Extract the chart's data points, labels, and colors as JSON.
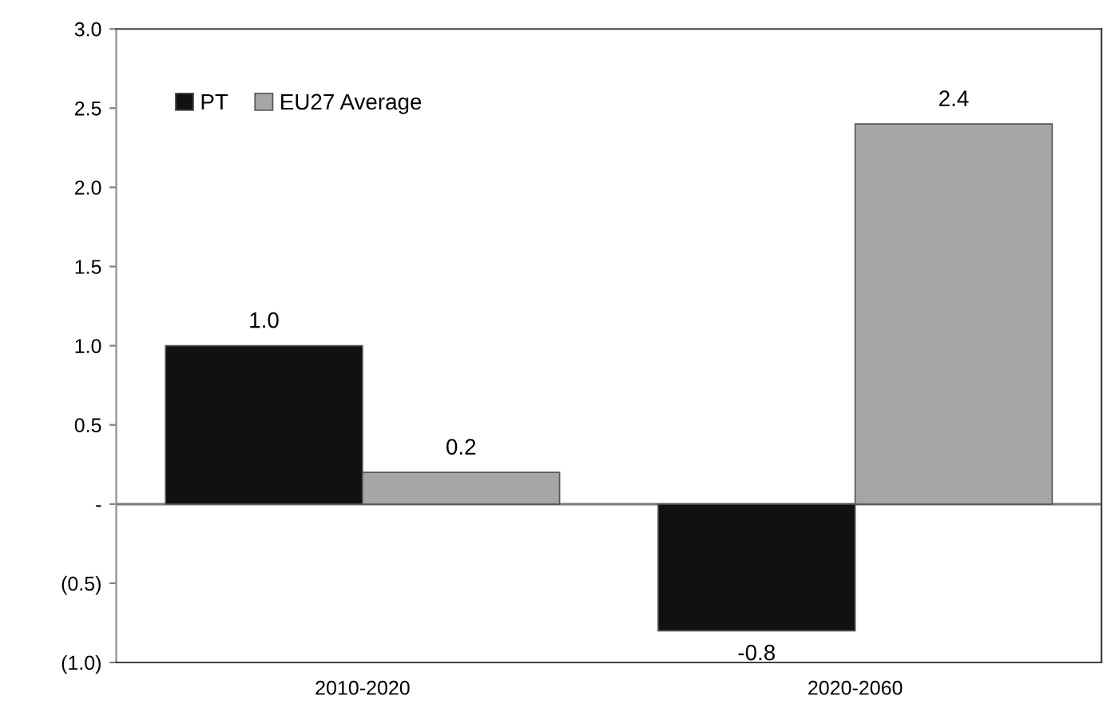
{
  "chart_data": {
    "type": "bar",
    "categories": [
      "2010-2020",
      "2020-2060"
    ],
    "series": [
      {
        "name": "PT",
        "color": "#111111",
        "values": [
          1.0,
          -0.8
        ],
        "value_labels": [
          "1.0",
          "-0.8"
        ]
      },
      {
        "name": "EU27 Average",
        "color": "#a6a6a6",
        "values": [
          0.2,
          2.4
        ],
        "value_labels": [
          "0.2",
          "2.4"
        ]
      }
    ],
    "ylim": [
      -1.0,
      3.0
    ],
    "yticks": [
      {
        "value": -1.0,
        "label": "(1.0)"
      },
      {
        "value": -0.5,
        "label": "(0.5)"
      },
      {
        "value": 0,
        "label": "-"
      },
      {
        "value": 0.5,
        "label": "0.5"
      },
      {
        "value": 1.0,
        "label": "1.0"
      },
      {
        "value": 1.5,
        "label": "1.5"
      },
      {
        "value": 2.0,
        "label": "2.0"
      },
      {
        "value": 2.5,
        "label": "2.5"
      },
      {
        "value": 3.0,
        "label": "3.0"
      }
    ],
    "ref_lines": [
      {
        "axis": "y",
        "value": 0,
        "color": "#808080"
      }
    ],
    "grid": false,
    "legend": "top left"
  }
}
